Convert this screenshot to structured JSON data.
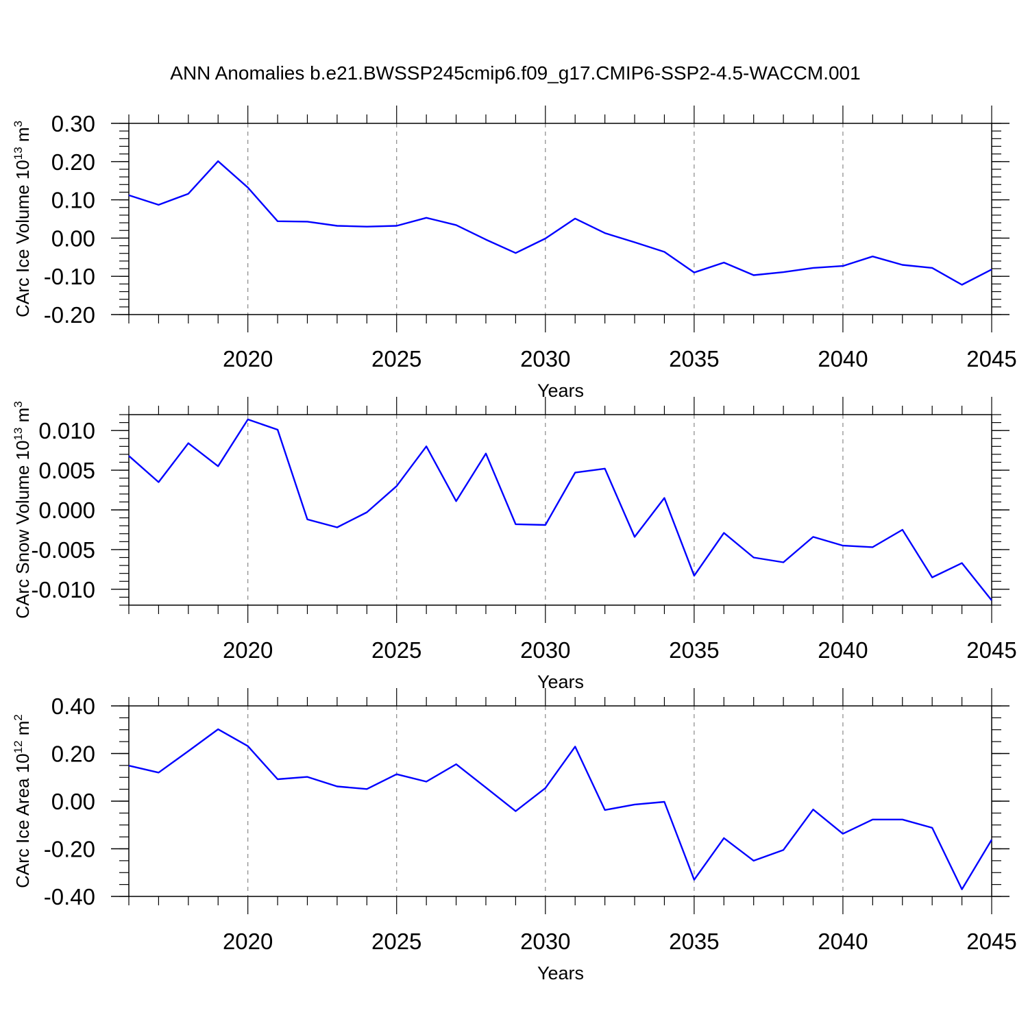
{
  "figure": {
    "title": "ANN Anomalies b.e21.BWSSP245cmip6.f09_g17.CMIP6-SSP2-4.5-WACCM.001"
  },
  "colors": {
    "series": "#0000ff",
    "axis": "#000000",
    "grid": "#888888"
  },
  "chart_data": [
    {
      "type": "line",
      "ylabel": "CArc Ice Volume 10",
      "ylabel_sup": "13",
      "ylabel_unit": "m",
      "ylabel_unit_sup": "3",
      "xlabel": "Years",
      "xlim": [
        2016,
        2045
      ],
      "ylim": [
        -0.2,
        0.3
      ],
      "x_ticks": [
        2020,
        2025,
        2030,
        2035,
        2040,
        2045
      ],
      "y_ticks": [
        -0.2,
        -0.1,
        0.0,
        0.1,
        0.2,
        0.3
      ],
      "y_tick_labels": [
        "-0.20",
        "-0.10",
        "0.00",
        "0.10",
        "0.20",
        "0.30"
      ],
      "y_minor_step": 0.02,
      "grid": "dashed vertical lines at major x ticks",
      "x": [
        2016,
        2017,
        2018,
        2019,
        2020,
        2021,
        2022,
        2023,
        2024,
        2025,
        2026,
        2027,
        2028,
        2029,
        2030,
        2031,
        2032,
        2033,
        2034,
        2035,
        2036,
        2037,
        2038,
        2039,
        2040,
        2041,
        2042,
        2043,
        2044,
        2045
      ],
      "series": [
        {
          "values": [
            0.112,
            0.087,
            0.116,
            0.201,
            0.132,
            0.044,
            0.043,
            0.032,
            0.03,
            0.032,
            0.053,
            0.034,
            -0.004,
            -0.039,
            -0.001,
            0.051,
            0.013,
            -0.011,
            -0.036,
            -0.09,
            -0.064,
            -0.097,
            -0.089,
            -0.078,
            -0.073,
            -0.048,
            -0.07,
            -0.078,
            -0.122,
            -0.082
          ]
        }
      ]
    },
    {
      "type": "line",
      "ylabel": "CArc Snow Volume 10",
      "ylabel_sup": "13",
      "ylabel_unit": "m",
      "ylabel_unit_sup": "3",
      "xlabel": "Years",
      "xlim": [
        2016,
        2045
      ],
      "ylim": [
        -0.012,
        0.012
      ],
      "x_ticks": [
        2020,
        2025,
        2030,
        2035,
        2040,
        2045
      ],
      "y_ticks": [
        -0.01,
        -0.005,
        0.0,
        0.005,
        0.01
      ],
      "y_tick_labels": [
        "-0.010",
        "-0.005",
        "0.000",
        "0.005",
        "0.010"
      ],
      "y_minor_step": 0.001,
      "grid": "dashed vertical lines at major x ticks",
      "x": [
        2016,
        2017,
        2018,
        2019,
        2020,
        2021,
        2022,
        2023,
        2024,
        2025,
        2026,
        2027,
        2028,
        2029,
        2030,
        2031,
        2032,
        2033,
        2034,
        2035,
        2036,
        2037,
        2038,
        2039,
        2040,
        2041,
        2042,
        2043,
        2044,
        2045
      ],
      "series": [
        {
          "values": [
            0.0068,
            0.0035,
            0.0084,
            0.0055,
            0.0114,
            0.0101,
            -0.0012,
            -0.0022,
            -0.0003,
            0.003,
            0.008,
            0.0011,
            0.0071,
            -0.0018,
            -0.0019,
            0.0047,
            0.0052,
            -0.0034,
            0.0015,
            -0.0083,
            -0.0029,
            -0.006,
            -0.0066,
            -0.0034,
            -0.0045,
            -0.0047,
            -0.0025,
            -0.0085,
            -0.0067,
            -0.0114
          ]
        }
      ]
    },
    {
      "type": "line",
      "ylabel": "CArc Ice Area 10",
      "ylabel_sup": "12",
      "ylabel_unit": "m",
      "ylabel_unit_sup": "2",
      "xlabel": "Years",
      "xlim": [
        2016,
        2045
      ],
      "ylim": [
        -0.4,
        0.4
      ],
      "x_ticks": [
        2020,
        2025,
        2030,
        2035,
        2040,
        2045
      ],
      "y_ticks": [
        -0.4,
        -0.2,
        0.0,
        0.2,
        0.4
      ],
      "y_tick_labels": [
        "-0.40",
        "-0.20",
        "0.00",
        "0.20",
        "0.40"
      ],
      "y_minor_step": 0.05,
      "grid": "dashed vertical lines at major x ticks",
      "x": [
        2016,
        2017,
        2018,
        2019,
        2020,
        2021,
        2022,
        2023,
        2024,
        2025,
        2026,
        2027,
        2028,
        2029,
        2030,
        2031,
        2032,
        2033,
        2034,
        2035,
        2036,
        2037,
        2038,
        2039,
        2040,
        2041,
        2042,
        2043,
        2044,
        2045
      ],
      "series": [
        {
          "values": [
            0.149,
            0.12,
            0.21,
            0.302,
            0.231,
            0.092,
            0.102,
            0.062,
            0.051,
            0.113,
            0.082,
            0.155,
            0.057,
            -0.042,
            0.055,
            0.229,
            -0.037,
            -0.014,
            -0.003,
            -0.33,
            -0.155,
            -0.25,
            -0.205,
            -0.035,
            -0.137,
            -0.077,
            -0.077,
            -0.112,
            -0.37,
            -0.162
          ]
        }
      ]
    }
  ]
}
